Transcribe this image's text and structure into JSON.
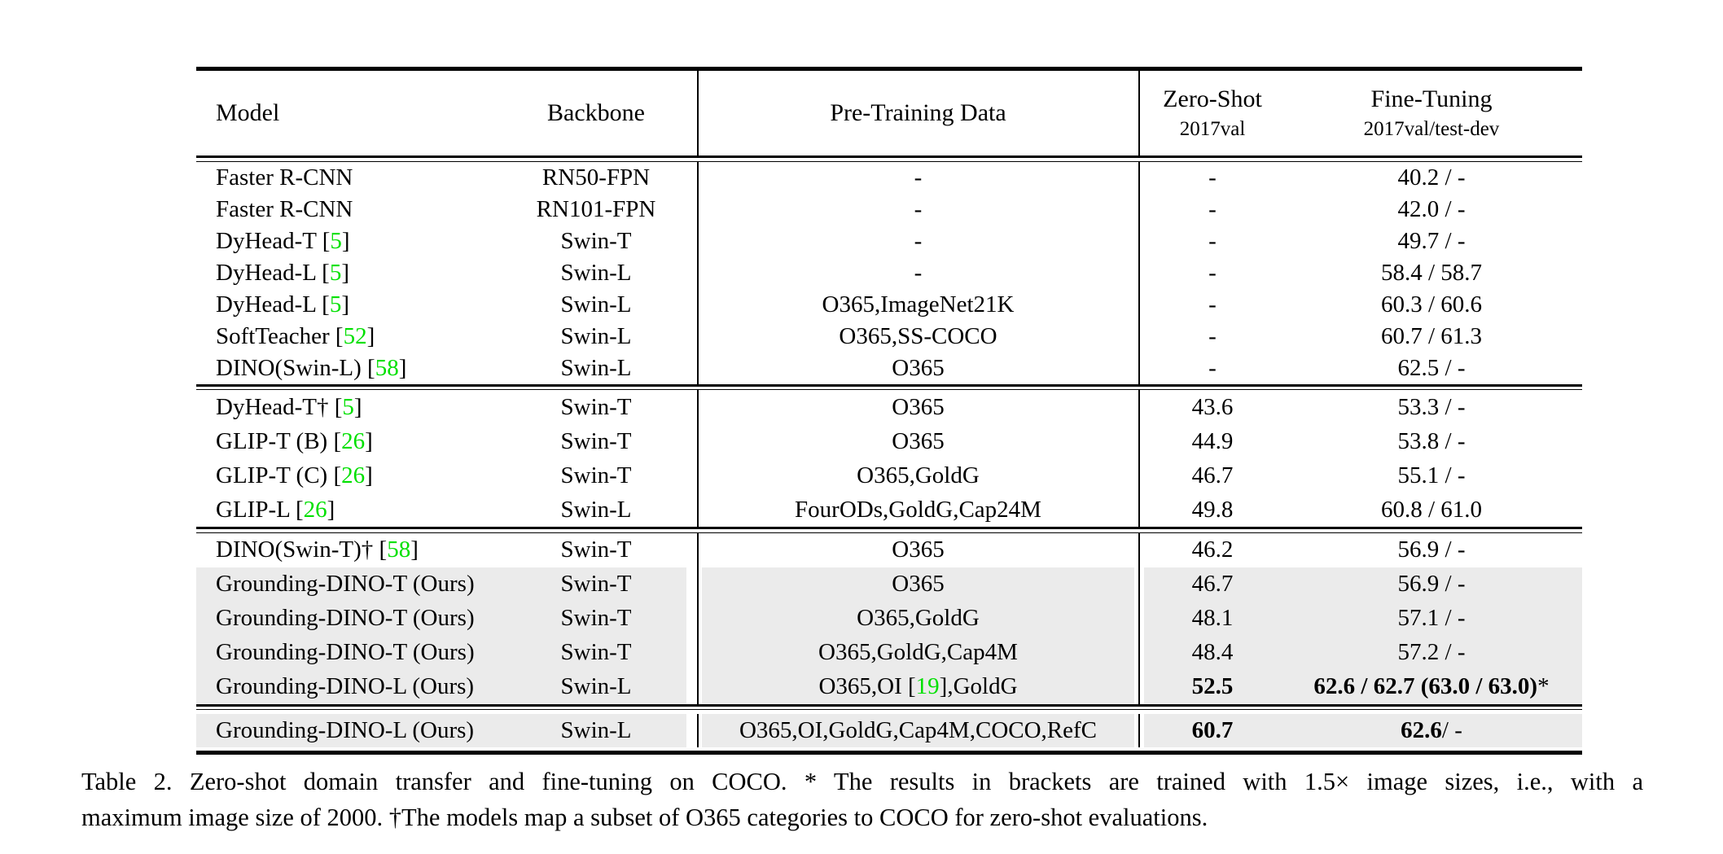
{
  "header": {
    "model": "Model",
    "backbone": "Backbone",
    "pretrain": "Pre-Training Data",
    "zeroshot_title": "Zero-Shot",
    "zeroshot_sub": "2017val",
    "finetune_title": "Fine-Tuning",
    "finetune_sub": "2017val/test-dev"
  },
  "colors": {
    "highlight_row": "#ebebeb",
    "citation_green": "#00e000",
    "rule_black": "#000000"
  },
  "sections": [
    {
      "name": "closed-set-baselines",
      "rows": [
        {
          "highlight": false,
          "model": [
            {
              "t": "Faster R-CNN"
            }
          ],
          "backbone": "RN50-FPN",
          "pretrain": [
            {
              "t": "-"
            }
          ],
          "zeroshot": [
            {
              "t": "-"
            }
          ],
          "finetune": [
            {
              "t": "40.2 / -"
            }
          ]
        },
        {
          "highlight": false,
          "model": [
            {
              "t": "Faster R-CNN"
            }
          ],
          "backbone": "RN101-FPN",
          "pretrain": [
            {
              "t": "-"
            }
          ],
          "zeroshot": [
            {
              "t": "-"
            }
          ],
          "finetune": [
            {
              "t": "42.0 / -"
            }
          ]
        },
        {
          "highlight": false,
          "model": [
            {
              "t": "DyHead-T ["
            },
            {
              "t": "5",
              "s": "cite"
            },
            {
              "t": "]"
            }
          ],
          "backbone": "Swin-T",
          "pretrain": [
            {
              "t": "-"
            }
          ],
          "zeroshot": [
            {
              "t": "-"
            }
          ],
          "finetune": [
            {
              "t": "49.7 / -"
            }
          ]
        },
        {
          "highlight": false,
          "model": [
            {
              "t": "DyHead-L ["
            },
            {
              "t": "5",
              "s": "cite"
            },
            {
              "t": "]"
            }
          ],
          "backbone": "Swin-L",
          "pretrain": [
            {
              "t": "-"
            }
          ],
          "zeroshot": [
            {
              "t": "-"
            }
          ],
          "finetune": [
            {
              "t": "58.4 / 58.7"
            }
          ]
        },
        {
          "highlight": false,
          "model": [
            {
              "t": "DyHead-L ["
            },
            {
              "t": "5",
              "s": "cite"
            },
            {
              "t": "]"
            }
          ],
          "backbone": "Swin-L",
          "pretrain": [
            {
              "t": "O365,ImageNet21K"
            }
          ],
          "zeroshot": [
            {
              "t": "-"
            }
          ],
          "finetune": [
            {
              "t": "60.3 / 60.6"
            }
          ]
        },
        {
          "highlight": false,
          "model": [
            {
              "t": "SoftTeacher ["
            },
            {
              "t": "52",
              "s": "cite"
            },
            {
              "t": "]"
            }
          ],
          "backbone": "Swin-L",
          "pretrain": [
            {
              "t": "O365,SS-COCO"
            }
          ],
          "zeroshot": [
            {
              "t": "-"
            }
          ],
          "finetune": [
            {
              "t": "60.7 / 61.3"
            }
          ]
        },
        {
          "highlight": false,
          "model": [
            {
              "t": "DINO(Swin-L) ["
            },
            {
              "t": "58",
              "s": "cite"
            },
            {
              "t": "]"
            }
          ],
          "backbone": "Swin-L",
          "pretrain": [
            {
              "t": "O365"
            }
          ],
          "zeroshot": [
            {
              "t": "-"
            }
          ],
          "finetune": [
            {
              "t": "62.5 / -"
            }
          ]
        }
      ]
    },
    {
      "name": "zero-shot-baselines",
      "rows": [
        {
          "highlight": false,
          "model": [
            {
              "t": "DyHead-T† ["
            },
            {
              "t": "5",
              "s": "cite"
            },
            {
              "t": "]"
            }
          ],
          "backbone": "Swin-T",
          "pretrain": [
            {
              "t": "O365"
            }
          ],
          "zeroshot": [
            {
              "t": "43.6"
            }
          ],
          "finetune": [
            {
              "t": "53.3 / -"
            }
          ]
        },
        {
          "highlight": false,
          "model": [
            {
              "t": "GLIP-T (B) ["
            },
            {
              "t": "26",
              "s": "cite"
            },
            {
              "t": "]"
            }
          ],
          "backbone": "Swin-T",
          "pretrain": [
            {
              "t": "O365"
            }
          ],
          "zeroshot": [
            {
              "t": "44.9"
            }
          ],
          "finetune": [
            {
              "t": "53.8 / -"
            }
          ]
        },
        {
          "highlight": false,
          "model": [
            {
              "t": "GLIP-T (C) ["
            },
            {
              "t": "26",
              "s": "cite"
            },
            {
              "t": "]"
            }
          ],
          "backbone": "Swin-T",
          "pretrain": [
            {
              "t": "O365,GoldG"
            }
          ],
          "zeroshot": [
            {
              "t": "46.7"
            }
          ],
          "finetune": [
            {
              "t": "55.1 / -"
            }
          ]
        },
        {
          "highlight": false,
          "model": [
            {
              "t": "GLIP-L ["
            },
            {
              "t": "26",
              "s": "cite"
            },
            {
              "t": "]"
            }
          ],
          "backbone": "Swin-L",
          "pretrain": [
            {
              "t": "FourODs,GoldG,Cap24M"
            }
          ],
          "zeroshot": [
            {
              "t": "49.8"
            }
          ],
          "finetune": [
            {
              "t": "60.8 / 61.0"
            }
          ]
        }
      ]
    },
    {
      "name": "grounding-dino-main",
      "rows": [
        {
          "highlight": false,
          "model": [
            {
              "t": "DINO(Swin-T)† ["
            },
            {
              "t": "58",
              "s": "cite"
            },
            {
              "t": "]"
            }
          ],
          "backbone": "Swin-T",
          "pretrain": [
            {
              "t": "O365"
            }
          ],
          "zeroshot": [
            {
              "t": "46.2"
            }
          ],
          "finetune": [
            {
              "t": "56.9 / -"
            }
          ]
        },
        {
          "highlight": true,
          "model": [
            {
              "t": "Grounding-DINO-T (Ours)"
            }
          ],
          "backbone": "Swin-T",
          "pretrain": [
            {
              "t": "O365"
            }
          ],
          "zeroshot": [
            {
              "t": "46.7"
            }
          ],
          "finetune": [
            {
              "t": "56.9 / -"
            }
          ]
        },
        {
          "highlight": true,
          "model": [
            {
              "t": "Grounding-DINO-T (Ours)"
            }
          ],
          "backbone": "Swin-T",
          "pretrain": [
            {
              "t": "O365,GoldG"
            }
          ],
          "zeroshot": [
            {
              "t": "48.1"
            }
          ],
          "finetune": [
            {
              "t": "57.1 / -"
            }
          ]
        },
        {
          "highlight": true,
          "model": [
            {
              "t": "Grounding-DINO-T (Ours)"
            }
          ],
          "backbone": "Swin-T",
          "pretrain": [
            {
              "t": "O365,GoldG,Cap4M"
            }
          ],
          "zeroshot": [
            {
              "t": "48.4"
            }
          ],
          "finetune": [
            {
              "t": "57.2 / -"
            }
          ]
        },
        {
          "highlight": true,
          "model": [
            {
              "t": "Grounding-DINO-L (Ours)"
            }
          ],
          "backbone": "Swin-L",
          "pretrain": [
            {
              "t": "O365,OI ["
            },
            {
              "t": "19",
              "s": "cite"
            },
            {
              "t": "],GoldG"
            }
          ],
          "zeroshot": [
            {
              "t": "52.5",
              "s": "bold"
            }
          ],
          "finetune": [
            {
              "t": "62.6 / 62.7 (63.0 / 63.0)",
              "s": "bold"
            },
            {
              "t": "*"
            }
          ]
        }
      ]
    },
    {
      "name": "grounding-dino-extra",
      "rows": [
        {
          "highlight": true,
          "model": [
            {
              "t": "Grounding-DINO-L (Ours)"
            }
          ],
          "backbone": "Swin-L",
          "pretrain": [
            {
              "t": "O365,OI,GoldG,Cap4M,COCO,RefC"
            }
          ],
          "zeroshot": [
            {
              "t": "60.7",
              "s": "bold"
            }
          ],
          "finetune": [
            {
              "t": "62.6",
              "s": "bold"
            },
            {
              "t": " / -"
            }
          ]
        }
      ]
    }
  ],
  "caption": {
    "line1": "Table 2. Zero-shot domain transfer and fine-tuning on COCO. * The results in brackets are trained with 1.5× image sizes, i.e., with a",
    "line2": "maximum image size of 2000. †The models map a subset of O365 categories to COCO for zero-shot evaluations."
  }
}
